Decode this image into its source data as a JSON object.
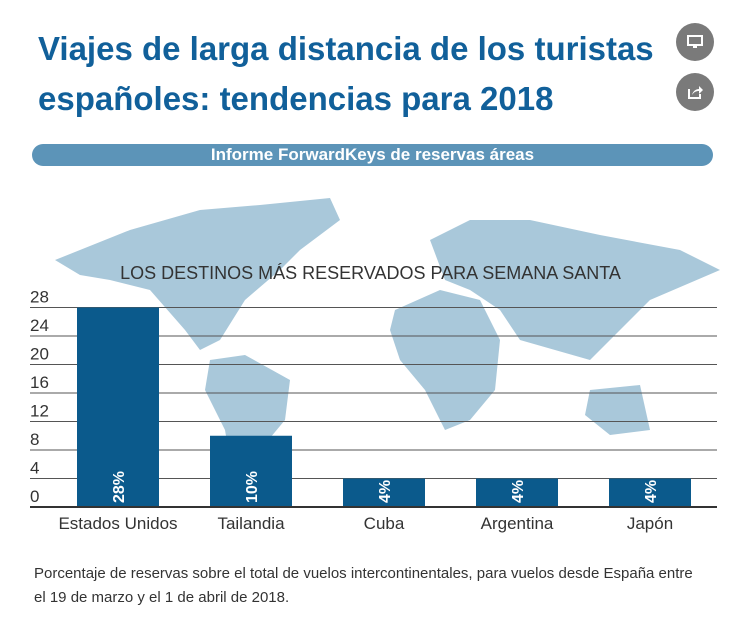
{
  "header": {
    "title": "Viajes de larga distancia de los turistas españoles: tendencias para 2018",
    "subtitle": "Informe ForwardKeys de reservas áreas"
  },
  "buttons": {
    "fullscreen_icon": "monitor-icon",
    "share_icon": "share-icon"
  },
  "chart_data": {
    "type": "bar",
    "title": "LOS DESTINOS MÁS RESERVADOS PARA SEMANA SANTA",
    "categories": [
      "Estados Unidos",
      "Tailandia",
      "Cuba",
      "Argentina",
      "Japón"
    ],
    "values": [
      28,
      10,
      4,
      4,
      4
    ],
    "data_labels": [
      "28%",
      "10%",
      "4%",
      "4%",
      "4%"
    ],
    "ylim": [
      0,
      28
    ],
    "yticks": [
      0,
      4,
      8,
      12,
      16,
      20,
      24,
      28
    ],
    "grid": true,
    "bar_color": "#0b5a8c",
    "map_color": "#a9c8da"
  },
  "footnote": "Porcentaje de reservas sobre el total de vuelos intercontinentales, para vuelos desde España entre el 19 de marzo y el 1 de abril de 2018."
}
